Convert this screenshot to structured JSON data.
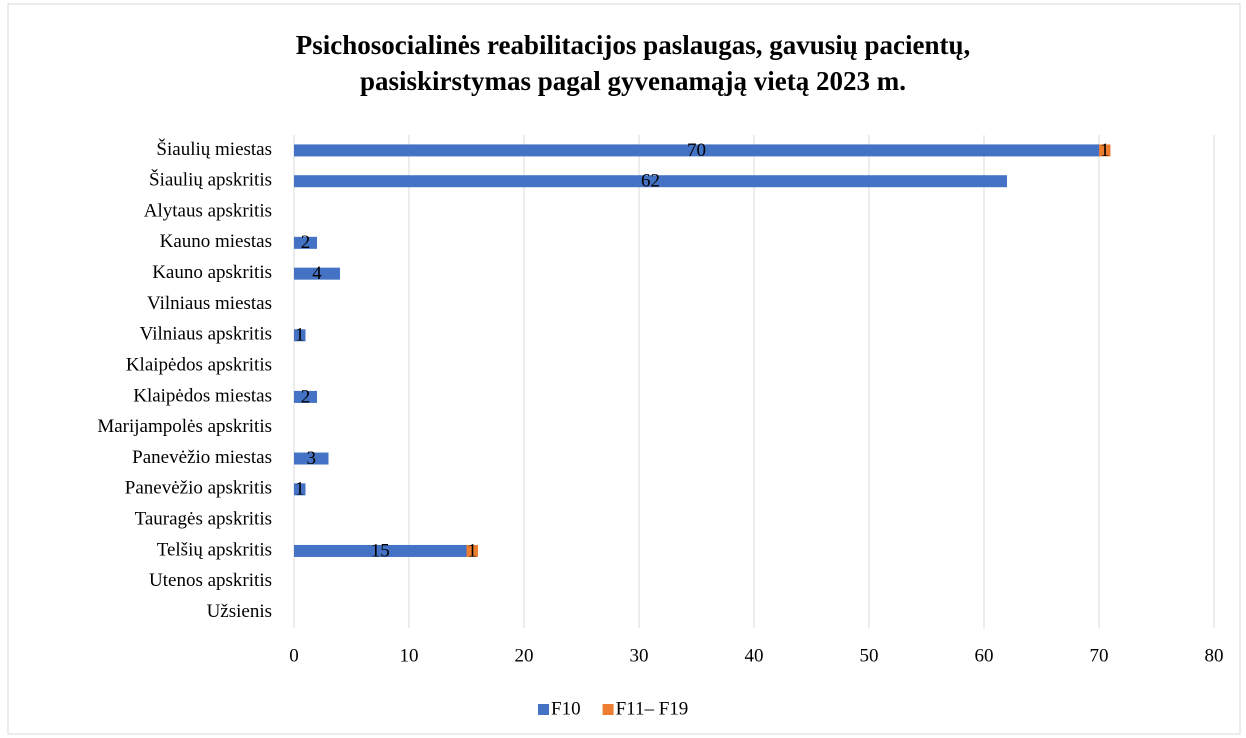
{
  "chart_data": {
    "type": "stacked_barh",
    "title": "Psichosocialinės reabilitacijos paslaugas, gavusių pacientų,",
    "subtitle": "pasiskirstymas pagal gyvenamąją vietą 2023 m.",
    "categories": [
      "Šiaulių miestas",
      "Šiaulių apskritis",
      "Alytaus apskritis",
      "Kauno miestas",
      "Kauno apskritis",
      "Vilniaus miestas",
      "Vilniaus apskritis",
      "Klaipėdos apskritis",
      "Klaipėdos miestas",
      "Marijampolės apskritis",
      "Panevėžio miestas",
      "Panevėžio apskritis",
      "Tauragės apskritis",
      "Telšių apskritis",
      "Utenos apskritis",
      "Užsienis"
    ],
    "series": [
      {
        "name": "F10",
        "color": "#4472c4",
        "values": [
          70,
          62,
          null,
          2,
          4,
          null,
          1,
          null,
          2,
          null,
          3,
          1,
          null,
          15,
          null,
          null
        ]
      },
      {
        "name": "F11– F19",
        "color": "#ed7d31",
        "values": [
          1,
          null,
          null,
          null,
          null,
          null,
          null,
          null,
          null,
          null,
          null,
          null,
          null,
          1,
          null,
          null
        ]
      }
    ],
    "xlim": [
      0,
      80
    ],
    "xticks": [
      0,
      10,
      20,
      30,
      40,
      50,
      60,
      70,
      80
    ],
    "grid": true,
    "legend": "bottom"
  }
}
